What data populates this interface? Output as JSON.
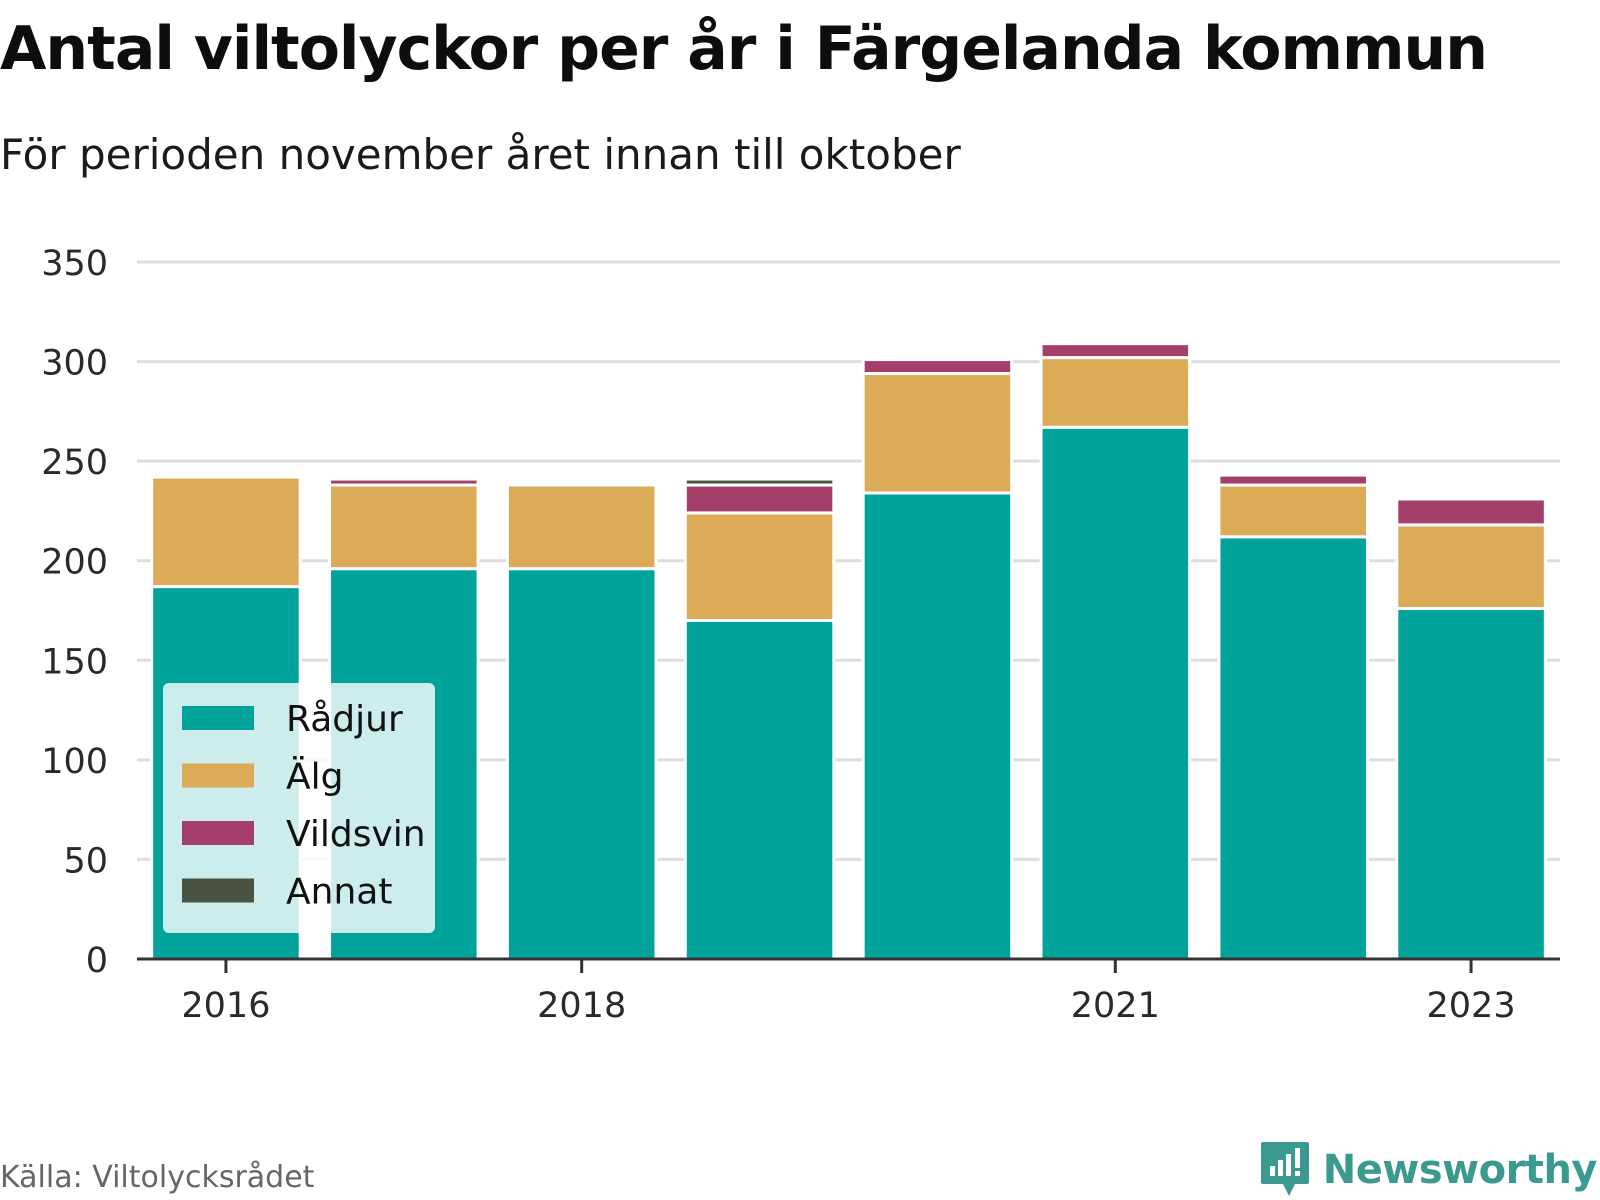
{
  "title": "Antal viltolyckor per år i Färgelanda kommun",
  "subtitle": "För perioden november året innan till oktober",
  "source": "Källa: Viltolycksrådet",
  "brand": {
    "name": "Newsworthy",
    "icon": "newsworthy-logo-icon",
    "color": "#3a9a8f"
  },
  "chart_data": {
    "type": "bar",
    "stacked": true,
    "x": [
      2016,
      2017,
      2018,
      2019,
      2020,
      2021,
      2022,
      2023
    ],
    "x_tick_labels": [
      "2016",
      "2018",
      "2021",
      "2023"
    ],
    "x_tick_values": [
      2016,
      2018,
      2021,
      2023
    ],
    "ylim": [
      0,
      350
    ],
    "y_ticks": [
      0,
      50,
      100,
      150,
      200,
      250,
      300,
      350
    ],
    "grid": true,
    "legend_position": "bottom-left",
    "series": [
      {
        "name": "Rådjur",
        "color": "#00a39a",
        "values": [
          187,
          196,
          196,
          170,
          234,
          267,
          212,
          176
        ]
      },
      {
        "name": "Älg",
        "color": "#dbab58",
        "values": [
          55,
          42,
          42,
          54,
          60,
          35,
          26,
          42
        ]
      },
      {
        "name": "Vildsvin",
        "color": "#a43f6a",
        "values": [
          0,
          3,
          0,
          14,
          7,
          7,
          5,
          13
        ]
      },
      {
        "name": "Annat",
        "color": "#4a5241",
        "values": [
          0,
          0,
          0,
          3,
          0,
          0,
          0,
          0
        ]
      }
    ]
  }
}
